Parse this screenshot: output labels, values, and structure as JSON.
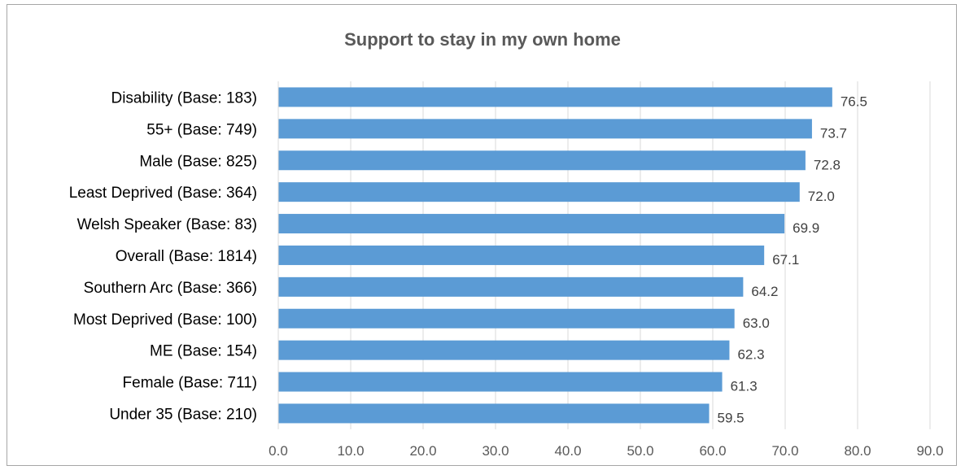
{
  "chart_data": {
    "type": "bar",
    "orientation": "horizontal",
    "title": "Support to stay in my own home",
    "categories": [
      "Disability (Base: 183)",
      "55+ (Base: 749)",
      "Male (Base: 825)",
      "Least Deprived (Base: 364)",
      "Welsh Speaker (Base: 83)",
      "Overall (Base: 1814)",
      "Southern Arc (Base: 366)",
      "Most Deprived (Base: 100)",
      "ME (Base: 154)",
      "Female (Base: 711)",
      "Under 35 (Base: 210)"
    ],
    "values": [
      76.5,
      73.7,
      72.8,
      72.0,
      69.9,
      67.1,
      64.2,
      63.0,
      62.3,
      61.3,
      59.5
    ],
    "value_labels": [
      "76.5",
      "73.7",
      "72.8",
      "72.0",
      "69.9",
      "67.1",
      "64.2",
      "63.0",
      "62.3",
      "61.3",
      "59.5"
    ],
    "xlim": [
      0,
      90
    ],
    "x_ticks": [
      "0.0",
      "10.0",
      "20.0",
      "30.0",
      "40.0",
      "50.0",
      "60.0",
      "70.0",
      "80.0",
      "90.0"
    ],
    "grid": true,
    "legend": "none",
    "bar_color": "#5b9bd5",
    "grid_color": "#d9d9d9"
  }
}
